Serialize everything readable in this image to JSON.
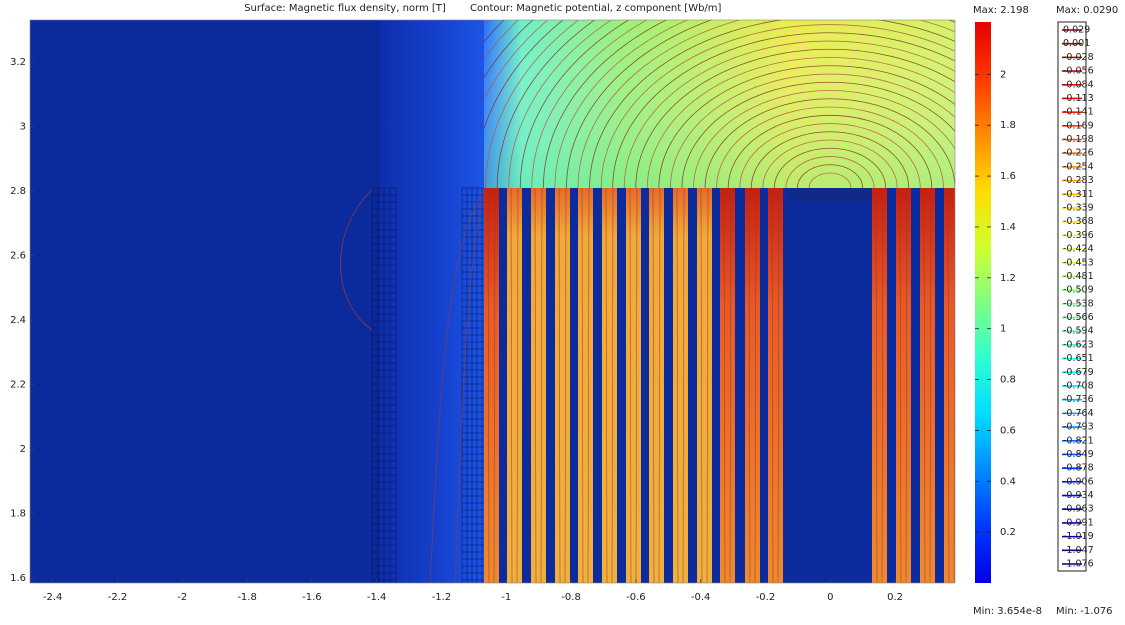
{
  "chart_data": {
    "type": "surface",
    "surface_title": "Surface: Magnetic flux density, norm [T]",
    "contour_title": "Contour: Magnetic potential, z component [Wb/m]",
    "xlim": [
      -2.47,
      0.385
    ],
    "xticks": [
      -2.4,
      -2.2,
      -2,
      -1.8,
      -1.6,
      -1.4,
      -1.2,
      -1,
      -0.8,
      -0.6,
      -0.4,
      -0.2,
      0,
      0.2
    ],
    "ylim": [
      1.585,
      3.33
    ],
    "yticks": [
      1.6,
      1.8,
      2,
      2.2,
      2.4,
      2.6,
      2.8,
      3,
      3.2
    ],
    "colorbar": {
      "max_label": "Max: 2.198",
      "min_label": "Min: 3.654e-8",
      "lim": [
        3.654e-08,
        2.198
      ],
      "ticks": [
        0.2,
        0.4,
        0.6,
        0.8,
        1,
        1.2,
        1.4,
        1.6,
        1.8,
        2
      ]
    },
    "contour_legend": {
      "max_label": "Max: 0.0290",
      "min_label": "Min: -1.076",
      "levels": [
        0.029,
        0.001,
        -0.028,
        -0.056,
        -0.084,
        -0.113,
        -0.141,
        -0.169,
        -0.198,
        -0.226,
        -0.254,
        -0.283,
        -0.311,
        -0.339,
        -0.368,
        -0.396,
        -0.424,
        -0.453,
        -0.481,
        -0.509,
        -0.538,
        -0.566,
        -0.594,
        -0.623,
        -0.651,
        -0.679,
        -0.708,
        -0.736,
        -0.764,
        -0.793,
        -0.821,
        -0.849,
        -0.878,
        -0.906,
        -0.934,
        -0.963,
        -0.991,
        -1.019,
        -1.047,
        -1.076
      ]
    }
  }
}
